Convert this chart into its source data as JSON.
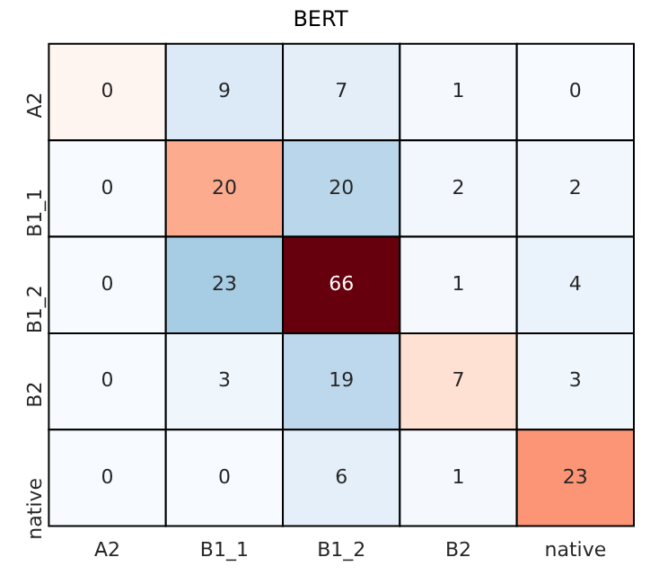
{
  "chart_data": {
    "type": "heatmap",
    "title": "BERT",
    "categories": [
      "A2",
      "B1_1",
      "B1_2",
      "B2",
      "native"
    ],
    "y_categories": [
      "A2",
      "B1_1",
      "B1_2",
      "B2",
      "native"
    ],
    "cells": [
      [
        0,
        9,
        7,
        1,
        0
      ],
      [
        0,
        20,
        20,
        2,
        2
      ],
      [
        0,
        23,
        66,
        1,
        4
      ],
      [
        0,
        3,
        19,
        7,
        3
      ],
      [
        0,
        0,
        6,
        1,
        23
      ]
    ],
    "colors": [
      [
        "#fff5f0",
        "#dce9f6",
        "#e3eef8",
        "#f5f9fe",
        "#f7fbff"
      ],
      [
        "#f7fbff",
        "#fcab8f",
        "#b9d6ea",
        "#f2f7fd",
        "#f2f7fd"
      ],
      [
        "#f7fbff",
        "#a6cde3",
        "#67000d",
        "#f5f9fe",
        "#eaf2fb"
      ],
      [
        "#f7fbff",
        "#eff6fc",
        "#bdd7ec",
        "#fee1d3",
        "#eff6fc"
      ],
      [
        "#f7fbff",
        "#f7fbff",
        "#e5eff9",
        "#f5f9fe",
        "#fc9576"
      ]
    ],
    "data_labels": true,
    "grid": false,
    "legend": false
  }
}
